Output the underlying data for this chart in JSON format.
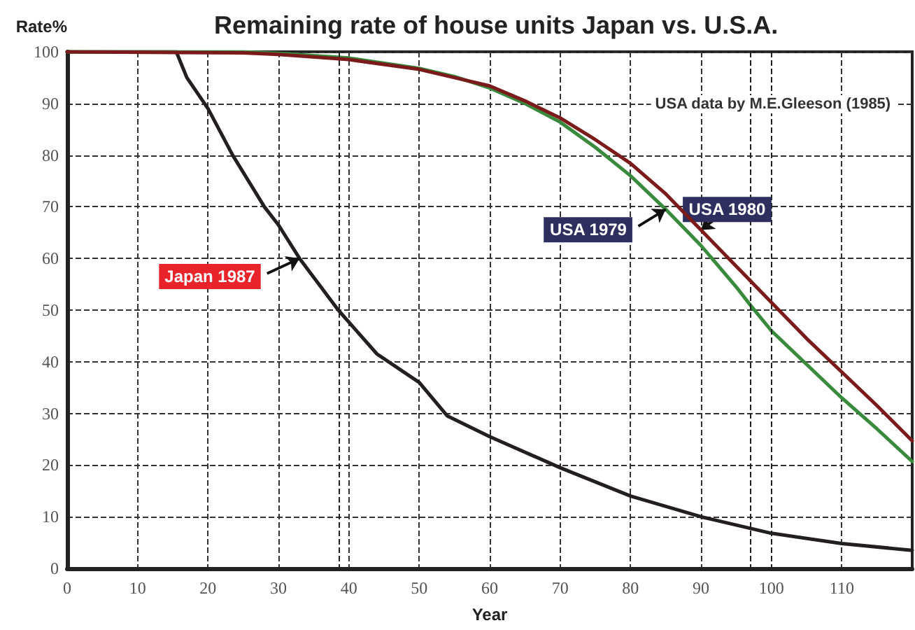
{
  "chart_data": {
    "type": "line",
    "title": "Remaining rate of house units Japan vs. U.S.A.",
    "xlabel": "Year",
    "ylabel": "Rate%",
    "xlim": [
      0,
      120
    ],
    "xticks": [
      0,
      10,
      20,
      30,
      40,
      50,
      60,
      70,
      80,
      90,
      100,
      110
    ],
    "ylim": [
      0,
      100
    ],
    "yticks": [
      0,
      10,
      20,
      30,
      40,
      50,
      60,
      70,
      80,
      90,
      100
    ],
    "grid": true,
    "legend": false,
    "marker": "none",
    "line_style": "solid",
    "series": [
      {
        "name": "Japan 1987",
        "color": "#231f20",
        "x": [
          0,
          15.5,
          17,
          20,
          23.5,
          28,
          30,
          33,
          38.5,
          44,
          50,
          54,
          60,
          70,
          80,
          90,
          100,
          110,
          120
        ],
        "values": [
          100,
          100,
          95,
          89,
          80,
          70,
          66.5,
          60,
          50,
          41.5,
          36,
          29.5,
          25.5,
          19.5,
          14,
          10,
          6.8,
          4.8,
          3.5
        ]
      },
      {
        "name": "USA 1979",
        "color": "#3a8a3e",
        "x": [
          0,
          25,
          30,
          40,
          50,
          55,
          60,
          65,
          70,
          75,
          80,
          85,
          90,
          95,
          97,
          100,
          105,
          110,
          115,
          120
        ],
        "values": [
          100,
          100,
          99.7,
          98.8,
          96.8,
          95.2,
          93,
          90,
          86.4,
          81.5,
          76,
          69.5,
          62.5,
          54.5,
          51,
          46,
          39.5,
          33,
          27,
          20.7
        ]
      },
      {
        "name": "USA 1980",
        "color": "#7a1a1a",
        "x": [
          0,
          25,
          30,
          40,
          50,
          55,
          60,
          65,
          70,
          75,
          80,
          85,
          90,
          95,
          100,
          105,
          110,
          115,
          120
        ],
        "values": [
          100,
          99.8,
          99.5,
          98.5,
          96.6,
          95,
          93.4,
          90.5,
          87.2,
          83,
          78.4,
          72.5,
          65.5,
          58.5,
          51.5,
          44.5,
          38,
          31.5,
          24.7
        ]
      }
    ],
    "ref_lines": [
      {
        "axis": "x",
        "value": 38.5,
        "line_style": "dashed"
      },
      {
        "axis": "x",
        "value": 97,
        "line_style": "dashed"
      },
      {
        "axis": "x",
        "value": 100,
        "line_style": "dashed"
      }
    ],
    "annotations": [
      "USA data by M.E.Gleeson (1985)"
    ]
  }
}
